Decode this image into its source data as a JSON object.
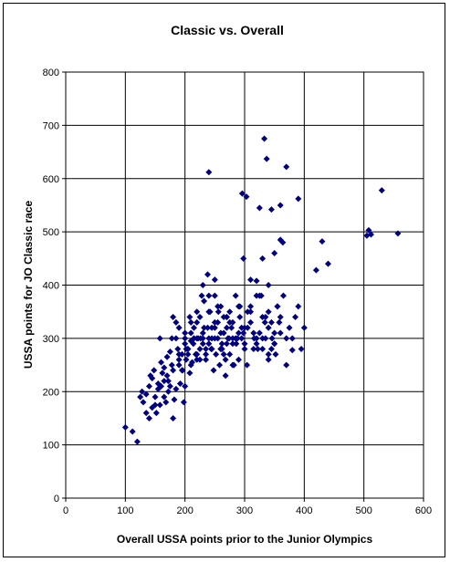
{
  "chart_data": {
    "type": "scatter",
    "title": "Classic vs. Overall",
    "xlabel": "Overall USSA points prior to the Junior Olympics",
    "ylabel": "USSA points for JO Classic race",
    "xlim": [
      0,
      600
    ],
    "ylim": [
      0,
      800
    ],
    "xticks": [
      "0",
      "100",
      "200",
      "300",
      "400",
      "500",
      "600"
    ],
    "yticks": [
      "0",
      "100",
      "200",
      "300",
      "400",
      "500",
      "600",
      "700",
      "800"
    ],
    "grid": true,
    "legend": "none",
    "marker_color": "#000080",
    "marker": "diamond",
    "series": [
      {
        "x": [
          100,
          112,
          120,
          125,
          130,
          135,
          140,
          145,
          148,
          152,
          155,
          158,
          160,
          162,
          165,
          168,
          170,
          172,
          175,
          178,
          180,
          182,
          185,
          188,
          190,
          192,
          195,
          198,
          200,
          202,
          205,
          208,
          210,
          212,
          215,
          218,
          220,
          222,
          225,
          228,
          230,
          232,
          235,
          238,
          240,
          242,
          245,
          248,
          250,
          252,
          255,
          258,
          260,
          262,
          265,
          268,
          270,
          272,
          275,
          278,
          280,
          282,
          285,
          288,
          290,
          292,
          295,
          298,
          300,
          305,
          310,
          315,
          320,
          325,
          330,
          335,
          340,
          345,
          350,
          355,
          360,
          365,
          370,
          375,
          380,
          385,
          390,
          395,
          400,
          128,
          135,
          142,
          150,
          158,
          165,
          172,
          178,
          185,
          190,
          196,
          202,
          208,
          214,
          220,
          226,
          232,
          238,
          244,
          250,
          256,
          262,
          268,
          274,
          280,
          286,
          292,
          298,
          304,
          310,
          316,
          322,
          328,
          334,
          340,
          346,
          352,
          358,
          364,
          370,
          140,
          150,
          160,
          170,
          180,
          190,
          200,
          210,
          220,
          230,
          240,
          250,
          260,
          270,
          280,
          290,
          300,
          310,
          320,
          330,
          340,
          350,
          360,
          145,
          155,
          165,
          175,
          185,
          195,
          205,
          215,
          225,
          235,
          245,
          255,
          265,
          275,
          285,
          295,
          305,
          315,
          325,
          335,
          345,
          355,
          180,
          190,
          200,
          210,
          220,
          230,
          240,
          250,
          260,
          270,
          280,
          290,
          300,
          310,
          320,
          330,
          340,
          350,
          200,
          205,
          210,
          215,
          220,
          225,
          230,
          235,
          240,
          245,
          250,
          255,
          260,
          265,
          270,
          275,
          240,
          296,
          303,
          325,
          333,
          337,
          345,
          360,
          370,
          390,
          320,
          330,
          340,
          350,
          360,
          380,
          420,
          430,
          440,
          505,
          508,
          512,
          530,
          557
        ],
        "y": [
          133,
          125,
          106,
          190,
          180,
          195,
          210,
          225,
          240,
          160,
          205,
          175,
          255,
          235,
          220,
          180,
          265,
          200,
          210,
          300,
          240,
          185,
          330,
          280,
          250,
          215,
          270,
          180,
          310,
          260,
          280,
          235,
          295,
          255,
          320,
          270,
          350,
          300,
          260,
          380,
          290,
          320,
          270,
          420,
          300,
          350,
          280,
          240,
          330,
          270,
          300,
          250,
          360,
          280,
          310,
          230,
          340,
          300,
          270,
          320,
          290,
          250,
          380,
          300,
          260,
          340,
          300,
          450,
          280,
          320,
          360,
          310,
          290,
          380,
          340,
          300,
          270,
          330,
          290,
          360,
          310,
          380,
          250,
          320,
          300,
          340,
          360,
          280,
          320,
          200,
          160,
          230,
          175,
          300,
          190,
          220,
          250,
          300,
          270,
          240,
          280,
          340,
          290,
          260,
          300,
          370,
          320,
          280,
          410,
          350,
          290,
          260,
          300,
          330,
          290,
          360,
          310,
          250,
          410,
          300,
          280,
          380,
          330,
          350,
          300,
          270,
          330,
          480,
          300,
          150,
          190,
          210,
          230,
          150,
          260,
          290,
          310,
          330,
          300,
          350,
          380,
          280,
          320,
          250,
          360,
          290,
          330,
          380,
          300,
          260,
          310,
          340,
          170,
          215,
          245,
          275,
          205,
          240,
          270,
          300,
          280,
          260,
          300,
          330,
          270,
          350,
          300,
          320,
          350,
          280,
          310,
          340,
          280,
          360,
          340,
          320,
          300,
          330,
          300,
          310,
          290,
          320,
          280,
          340,
          300,
          310,
          320,
          350,
          300,
          280,
          320,
          290,
          210,
          280,
          250,
          300,
          270,
          340,
          400,
          280,
          380,
          320,
          300,
          360,
          310,
          340,
          290,
          330,
          612,
          572,
          566,
          545,
          675,
          637,
          542,
          550,
          622,
          562,
          408,
          450,
          400,
          460,
          485,
          278,
          428,
          482,
          440,
          493,
          503,
          495,
          578,
          497
        ]
      }
    ]
  }
}
